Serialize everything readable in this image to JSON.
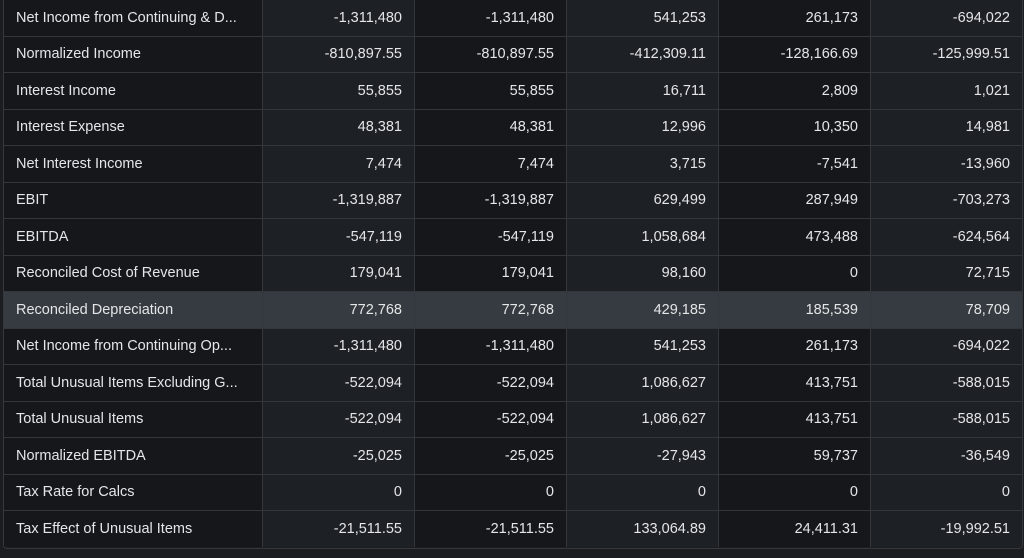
{
  "rows": [
    {
      "label": "Net Income from Continuing & D...",
      "values": [
        "-1,311,480",
        "-1,311,480",
        "541,253",
        "261,173",
        "-694,022"
      ]
    },
    {
      "label": "Normalized Income",
      "values": [
        "-810,897.55",
        "-810,897.55",
        "-412,309.11",
        "-128,166.69",
        "-125,999.51"
      ]
    },
    {
      "label": "Interest Income",
      "values": [
        "55,855",
        "55,855",
        "16,711",
        "2,809",
        "1,021"
      ]
    },
    {
      "label": "Interest Expense",
      "values": [
        "48,381",
        "48,381",
        "12,996",
        "10,350",
        "14,981"
      ]
    },
    {
      "label": "Net Interest Income",
      "values": [
        "7,474",
        "7,474",
        "3,715",
        "-7,541",
        "-13,960"
      ]
    },
    {
      "label": "EBIT",
      "values": [
        "-1,319,887",
        "-1,319,887",
        "629,499",
        "287,949",
        "-703,273"
      ]
    },
    {
      "label": "EBITDA",
      "values": [
        "-547,119",
        "-547,119",
        "1,058,684",
        "473,488",
        "-624,564"
      ]
    },
    {
      "label": "Reconciled Cost of Revenue",
      "values": [
        "179,041",
        "179,041",
        "98,160",
        "0",
        "72,715"
      ]
    },
    {
      "label": "Reconciled Depreciation",
      "values": [
        "772,768",
        "772,768",
        "429,185",
        "185,539",
        "78,709"
      ],
      "highlighted": true
    },
    {
      "label": "Net Income from Continuing Op...",
      "values": [
        "-1,311,480",
        "-1,311,480",
        "541,253",
        "261,173",
        "-694,022"
      ]
    },
    {
      "label": "Total Unusual Items Excluding G...",
      "values": [
        "-522,094",
        "-522,094",
        "1,086,627",
        "413,751",
        "-588,015"
      ]
    },
    {
      "label": "Total Unusual Items",
      "values": [
        "-522,094",
        "-522,094",
        "1,086,627",
        "413,751",
        "-588,015"
      ]
    },
    {
      "label": "Normalized EBITDA",
      "values": [
        "-25,025",
        "-25,025",
        "-27,943",
        "59,737",
        "-36,549"
      ]
    },
    {
      "label": "Tax Rate for Calcs",
      "values": [
        "0",
        "0",
        "0",
        "0",
        "0"
      ]
    },
    {
      "label": "Tax Effect of Unusual Items",
      "values": [
        "-21,511.55",
        "-21,511.55",
        "133,064.89",
        "24,411.31",
        "-19,992.51"
      ]
    }
  ]
}
